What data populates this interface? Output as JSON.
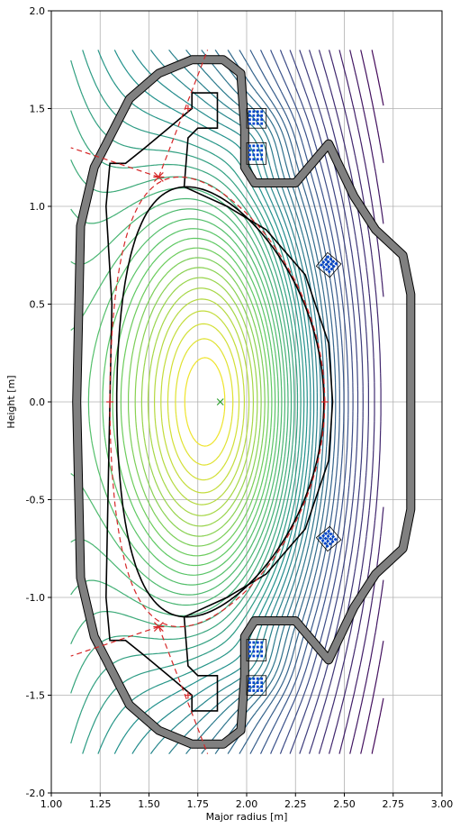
{
  "chart_data": {
    "type": "contour",
    "title": "",
    "xlabel": "Major radius [m]",
    "ylabel": "Height [m]",
    "xlim": [
      1.0,
      3.0
    ],
    "ylim": [
      -2.0,
      2.0
    ],
    "xticks": [
      "1.00",
      "1.25",
      "1.50",
      "1.75",
      "2.00",
      "2.25",
      "2.50",
      "2.75",
      "3.00"
    ],
    "yticks": [
      "-2.0",
      "-1.5",
      "-1.0",
      "-0.5",
      "0.0",
      "0.5",
      "1.0",
      "1.5",
      "2.0"
    ],
    "grid": true,
    "magnetic_axis": {
      "R": 1.865,
      "Z": 0.0,
      "color": "#2ca02c",
      "marker": "x"
    },
    "x_points": [
      {
        "R": 1.55,
        "Z": 1.15
      },
      {
        "R": 1.55,
        "Z": -1.15
      }
    ],
    "strike_points": [
      {
        "R": 1.7,
        "Z": 1.5
      },
      {
        "R": 1.7,
        "Z": -1.5
      },
      {
        "R": 1.3,
        "Z": 0.0
      },
      {
        "R": 2.4,
        "Z": 0.0
      }
    ],
    "separatrix_color": "#d62728",
    "contour_colormap": [
      "#440154",
      "#3b528b",
      "#21918c",
      "#5ec962",
      "#fde725"
    ],
    "contour_domain": {
      "R": [
        1.1,
        2.7
      ],
      "Z": [
        -1.8,
        1.8
      ]
    },
    "plasma_boundary_color": "#000000",
    "wall_color": "#808080",
    "coil_color": "#0044cc",
    "coil_blocks": [
      {
        "R": 2.05,
        "Z": 1.45,
        "w": 0.1,
        "h": 0.1
      },
      {
        "R": 2.05,
        "Z": 1.27,
        "w": 0.1,
        "h": 0.11
      },
      {
        "R": 2.05,
        "Z": -1.45,
        "w": 0.1,
        "h": 0.1
      },
      {
        "R": 2.05,
        "Z": -1.27,
        "w": 0.1,
        "h": 0.11
      },
      {
        "R": 2.42,
        "Z": 0.7,
        "w": 0.09,
        "h": 0.09,
        "rot": 40
      },
      {
        "R": 2.42,
        "Z": -0.7,
        "w": 0.09,
        "h": 0.09,
        "rot": -40
      }
    ]
  }
}
